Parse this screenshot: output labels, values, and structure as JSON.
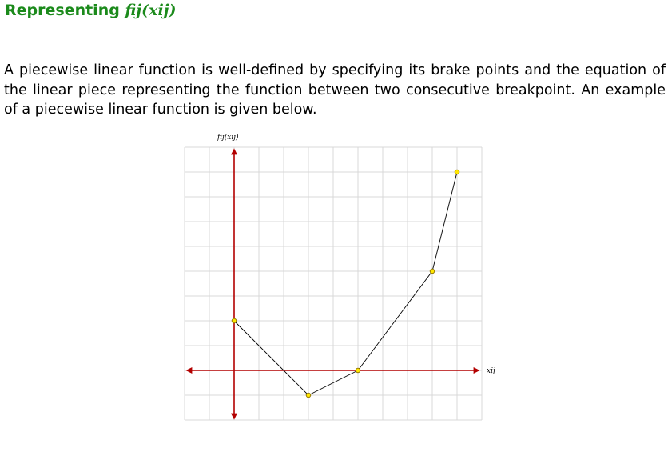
{
  "slide": {
    "title_prefix": "Representing",
    "title_math": "fij(xij)",
    "paragraph": "A piecewise linear function is well-defined by specifying its brake points and the equation of the linear piece representing the function between two consecutive breakpoint. An example of a piecewise linear function is given below."
  },
  "chart_data": {
    "type": "line",
    "ylabel": "fij(xij)",
    "xlabel": "xij",
    "grid": true,
    "points": [
      {
        "x": 0,
        "y": 2
      },
      {
        "x": 3,
        "y": -1
      },
      {
        "x": 5,
        "y": 0
      },
      {
        "x": 8,
        "y": 4
      },
      {
        "x": 9,
        "y": 8
      }
    ],
    "xlim": [
      -2,
      10
    ],
    "ylim": [
      -2,
      9
    ],
    "colors": {
      "axis": "#b30000",
      "grid": "#d9d9d9",
      "line": "#000000",
      "marker_fill": "#ffe600",
      "marker_stroke": "#8a6d00",
      "title": "#1b8a1b"
    }
  }
}
